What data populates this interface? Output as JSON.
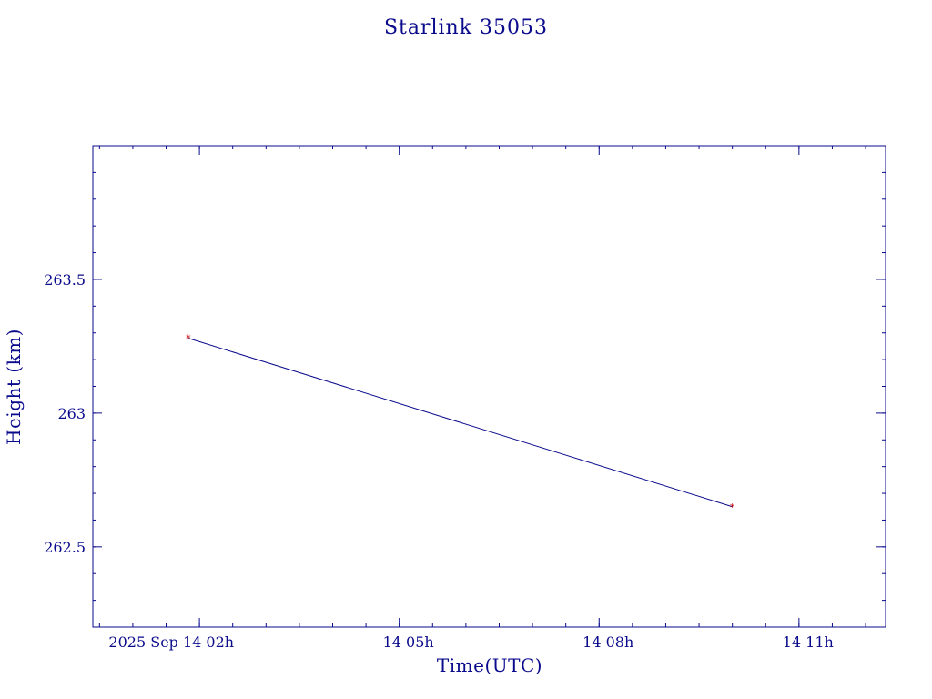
{
  "chart_data": {
    "type": "line",
    "title": "Starlink 35053",
    "xlabel": "Time(UTC)",
    "ylabel": "Height (km)",
    "x_ticks": [
      {
        "value": "2025-09-14T02:00",
        "label": "2025 Sep 14  02h"
      },
      {
        "value": "2025-09-14T05:00",
        "label": "14  05h"
      },
      {
        "value": "2025-09-14T08:00",
        "label": "14  08h"
      },
      {
        "value": "2025-09-14T11:00",
        "label": "14  11h"
      }
    ],
    "y_ticks": [
      {
        "value": 262.5,
        "label": "262.5"
      },
      {
        "value": 263,
        "label": "263"
      },
      {
        "value": 263.5,
        "label": "263.5"
      }
    ],
    "xlim": [
      "2025-09-14T00:24",
      "2025-09-14T12:18"
    ],
    "ylim": [
      262.2,
      264.0
    ],
    "grid": false,
    "series": [
      {
        "x": [
          "2025-09-14T01:50",
          "2025-09-14T10:00"
        ],
        "y": [
          263.28,
          262.65
        ]
      }
    ],
    "colors": {
      "axes": "#0a0a8c",
      "line": "#0a0a8c",
      "marker": "#cc0000"
    }
  }
}
